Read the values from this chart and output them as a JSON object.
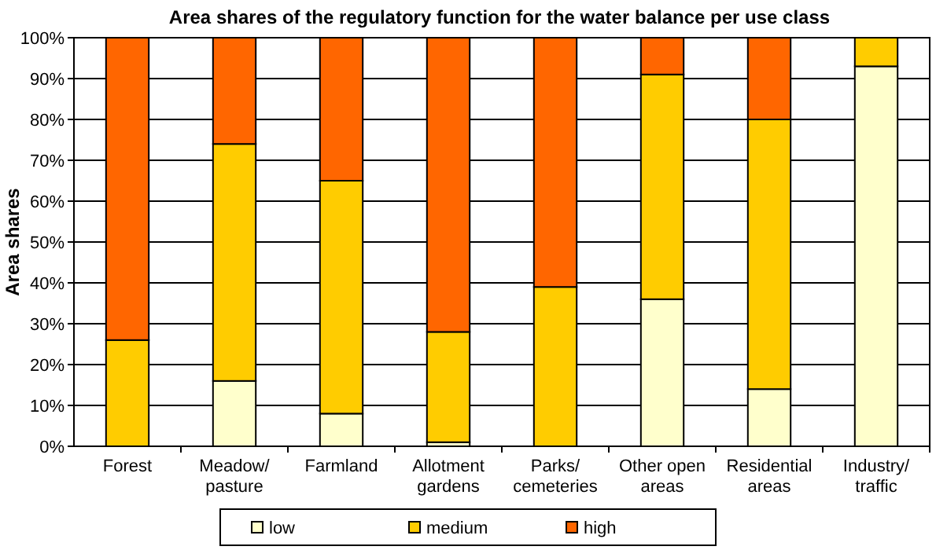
{
  "chart_data": {
    "type": "bar",
    "stacked": true,
    "title": "Area shares of the regulatory function for the water balance per use class",
    "ylabel": "Area shares",
    "categories": [
      "Forest",
      "Meadow/\npasture",
      "Farmland",
      "Allotment\ngardens",
      "Parks/\ncemeteries",
      "Other open\nareas",
      "Residential\nareas",
      "Industry/\ntraffic"
    ],
    "series": [
      {
        "name": "low",
        "color": "#ffffcc",
        "values": [
          0,
          16,
          8,
          1,
          0,
          36,
          14,
          93
        ]
      },
      {
        "name": "medium",
        "color": "#ffcc00",
        "values": [
          26,
          58,
          57,
          27,
          39,
          55,
          66,
          7
        ]
      },
      {
        "name": "high",
        "color": "#ff6600",
        "values": [
          74,
          26,
          35,
          72,
          61,
          9,
          20,
          0
        ]
      }
    ],
    "ylim": [
      0,
      100
    ],
    "yticks": [
      {
        "value": 0,
        "label": "0%"
      },
      {
        "value": 10,
        "label": "10%"
      },
      {
        "value": 20,
        "label": "20%"
      },
      {
        "value": 30,
        "label": "30%"
      },
      {
        "value": 40,
        "label": "40%"
      },
      {
        "value": 50,
        "label": "50%"
      },
      {
        "value": 60,
        "label": "60%"
      },
      {
        "value": 70,
        "label": "70%"
      },
      {
        "value": 80,
        "label": "80%"
      },
      {
        "value": 90,
        "label": "90%"
      },
      {
        "value": 100,
        "label": "100%"
      }
    ],
    "grid": "y",
    "legend": "bottom"
  }
}
